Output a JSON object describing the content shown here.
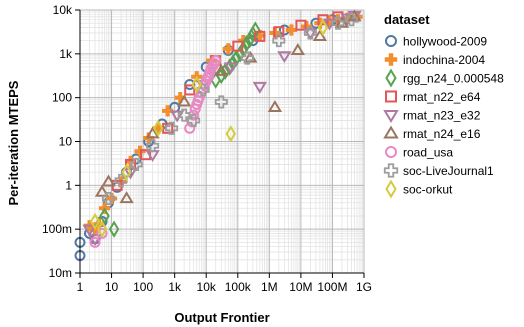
{
  "chart_data": {
    "type": "scatter",
    "xlabel": "Output Frontier",
    "ylabel": "Per-iteration MTEPS",
    "xscale": "log",
    "yscale": "log",
    "xlim": [
      1,
      1000000000
    ],
    "ylim": [
      0.01,
      10000
    ],
    "xticks": [
      {
        "value": 1,
        "label": "1"
      },
      {
        "value": 10,
        "label": "10"
      },
      {
        "value": 100,
        "label": "100"
      },
      {
        "value": 1000,
        "label": "1k"
      },
      {
        "value": 10000,
        "label": "10k"
      },
      {
        "value": 100000,
        "label": "100k"
      },
      {
        "value": 1000000,
        "label": "1M"
      },
      {
        "value": 10000000,
        "label": "10M"
      },
      {
        "value": 100000000,
        "label": "100M"
      },
      {
        "value": 1000000000,
        "label": "1G"
      }
    ],
    "yticks": [
      {
        "value": 0.01,
        "label": "10m"
      },
      {
        "value": 0.1,
        "label": "100m"
      },
      {
        "value": 1,
        "label": "1"
      },
      {
        "value": 10,
        "label": "10"
      },
      {
        "value": 100,
        "label": "100"
      },
      {
        "value": 1000,
        "label": "1k"
      },
      {
        "value": 10000,
        "label": "10k"
      }
    ],
    "grid": true,
    "legend_title": "dataset",
    "legend_position": "right",
    "series": [
      {
        "name": "hollywood-2009",
        "marker": "circle",
        "color": "#4e79a7",
        "x": [
          1,
          1,
          2,
          3,
          5,
          8,
          15,
          30,
          60,
          150,
          400,
          1000,
          3000,
          10000,
          50000,
          300000,
          3000000,
          30000000,
          100000000
        ],
        "y": [
          0.025,
          0.05,
          0.08,
          0.06,
          0.15,
          0.4,
          0.9,
          2,
          4,
          10,
          25,
          60,
          200,
          500,
          1200,
          2000,
          3500,
          5000,
          6000
        ]
      },
      {
        "name": "indochina-2004",
        "marker": "cross",
        "color": "#f28e2b",
        "x": [
          2,
          3,
          4,
          6,
          10,
          20,
          40,
          80,
          150,
          300,
          600,
          1500,
          5000,
          15000,
          50000,
          150000,
          500000,
          1500000,
          5000000,
          15000000,
          40000000,
          80000000,
          150000000,
          300000000,
          600000000
        ],
        "y": [
          0.12,
          0.1,
          0.13,
          0.3,
          0.5,
          1.2,
          3.5,
          6,
          12,
          20,
          50,
          100,
          300,
          700,
          1300,
          2000,
          2600,
          3000,
          3500,
          4200,
          5000,
          5600,
          6000,
          6500,
          7000
        ]
      },
      {
        "name": "rgg_n24_0.000548",
        "marker": "diamond",
        "color": "#59a14f",
        "x": [
          6,
          12,
          20000,
          30000,
          40000,
          55000,
          70000,
          90000,
          120000,
          150000,
          190000,
          240000,
          300000,
          360000
        ],
        "y": [
          0.2,
          0.1,
          250,
          320,
          400,
          500,
          620,
          800,
          1000,
          1300,
          1700,
          2100,
          2800,
          3500
        ]
      },
      {
        "name": "rmat_n22_e64",
        "marker": "square",
        "color": "#e15759",
        "x": [
          15,
          40,
          120,
          600,
          3000,
          20000,
          100000,
          500000,
          2000000,
          10000000,
          50000000,
          150000000
        ],
        "y": [
          1,
          3,
          5,
          20,
          150,
          700,
          1500,
          2500,
          3200,
          4500,
          6000,
          7000
        ]
      },
      {
        "name": "rmat_n23_e32",
        "marker": "triangle-down",
        "color": "#af7aa1",
        "x": [
          2,
          3,
          40,
          200,
          1200,
          8000,
          60000,
          500000,
          3000000,
          20000000,
          80000000,
          300000000,
          500000000
        ],
        "y": [
          0.1,
          0.06,
          2,
          5,
          40,
          200,
          500,
          180,
          900,
          3000,
          5000,
          6500,
          7500
        ]
      },
      {
        "name": "rmat_n24_e16",
        "marker": "triangle-up",
        "color": "#9c755f",
        "x": [
          5,
          8,
          30,
          200,
          2000,
          30000,
          250000,
          1500000,
          8000000,
          40000000,
          200000000,
          500000000
        ],
        "y": [
          0.7,
          1.2,
          0.5,
          15,
          80,
          400,
          800,
          60,
          1200,
          2500,
          5000,
          7000
        ]
      },
      {
        "name": "road_usa",
        "marker": "circle",
        "color": "#e78ac3",
        "x": [
          3,
          5,
          3000,
          3500,
          4000,
          4500,
          5000,
          5500,
          6000,
          7000,
          8000,
          9000,
          10000,
          11000,
          12000,
          13000,
          14000,
          16000,
          18000,
          20000
        ],
        "y": [
          0.05,
          0.08,
          20,
          28,
          40,
          55,
          70,
          85,
          100,
          130,
          160,
          200,
          240,
          280,
          320,
          380,
          450,
          520,
          600,
          700
        ]
      },
      {
        "name": "soc-LiveJournal1",
        "marker": "plus",
        "color": "#9d9d9d",
        "x": [
          8,
          20,
          60,
          200,
          800,
          2000,
          4000,
          8000,
          30000,
          200000,
          2000000,
          20000000,
          150000000,
          400000000
        ],
        "y": [
          0.5,
          1.3,
          3,
          8,
          20,
          40,
          30,
          150,
          80,
          800,
          2000,
          3000,
          5000,
          6000
        ]
      },
      {
        "name": "soc-orkut",
        "marker": "diamond",
        "color": "#d4cc3c",
        "x": [
          3,
          5,
          30,
          300,
          5000,
          60000,
          50000000
        ],
        "y": [
          0.15,
          0.1,
          2,
          20,
          200,
          15,
          4000
        ]
      }
    ]
  }
}
